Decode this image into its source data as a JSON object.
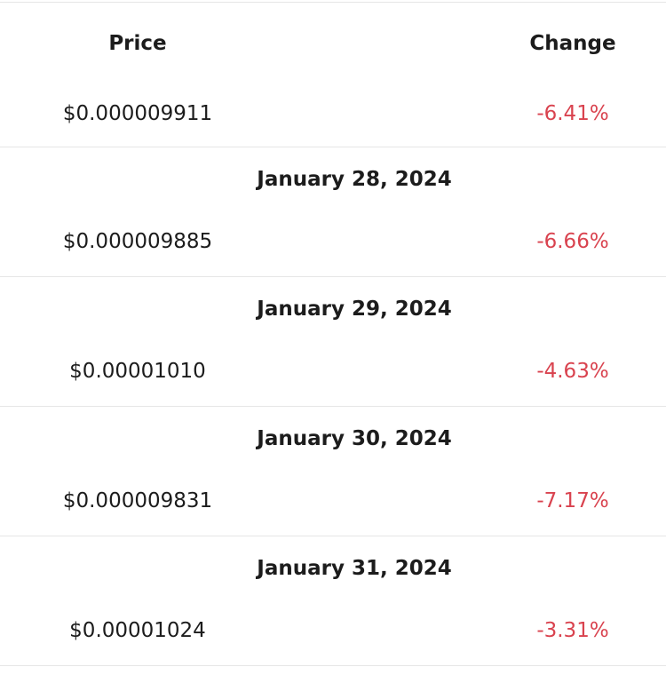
{
  "columns": {
    "price": "Price",
    "change": "Change"
  },
  "first_row": {
    "price": "$0.000009911",
    "change": "-6.41%"
  },
  "rows": [
    {
      "date": "January 28, 2024",
      "price": "$0.000009885",
      "change": "-6.66%"
    },
    {
      "date": "January 29, 2024",
      "price": "$0.00001010",
      "change": "-4.63%"
    },
    {
      "date": "January 30, 2024",
      "price": "$0.000009831",
      "change": "-7.17%"
    },
    {
      "date": "January 31, 2024",
      "price": "$0.00001024",
      "change": "-3.31%"
    }
  ],
  "colors": {
    "negative_change": "#d9434f",
    "divider": "#e6e6e6"
  }
}
